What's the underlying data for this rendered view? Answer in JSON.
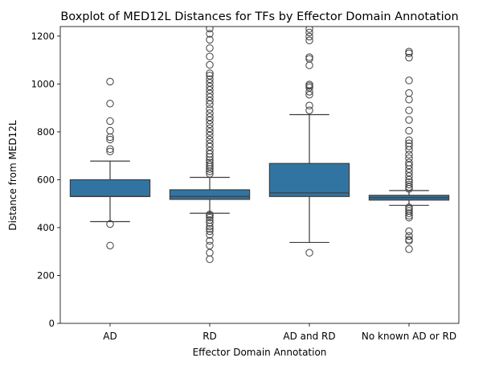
{
  "chart_data": {
    "type": "boxplot",
    "title": "Boxplot of MED12L Distances for TFs by Effector Domain Annotation",
    "xlabel": "Effector Domain Annotation",
    "ylabel": "Distance from MED12L",
    "ylim": [
      0,
      1240
    ],
    "yticks": [
      0,
      200,
      400,
      600,
      800,
      1000,
      1200
    ],
    "box_color": "#3274a1",
    "line_color": "#3d3d3d",
    "categories": [
      "AD",
      "RD",
      "AD and RD",
      "No known AD or RD"
    ],
    "boxes": [
      {
        "category": "AD",
        "q1": 530,
        "median": 530,
        "q3": 600,
        "whisker_low": 425,
        "whisker_high": 678,
        "outliers": [
          1010,
          918,
          845,
          805,
          778,
          768,
          728,
          718,
          415,
          325
        ]
      },
      {
        "category": "RD",
        "q1": 518,
        "median": 530,
        "q3": 558,
        "whisker_low": 460,
        "whisker_high": 610,
        "outliers": [
          1232,
          1210,
          1185,
          1150,
          1115,
          1080,
          1045,
          1035,
          1020,
          1005,
          990,
          975,
          960,
          945,
          930,
          915,
          895,
          878,
          862,
          848,
          832,
          815,
          800,
          785,
          768,
          752,
          738,
          722,
          708,
          695,
          682,
          672,
          663,
          655,
          645,
          635,
          625,
          455,
          450,
          442,
          432,
          420,
          405,
          395,
          385,
          370,
          345,
          325,
          295,
          268
        ]
      },
      {
        "category": "AD and RD",
        "q1": 530,
        "median": 545,
        "q3": 668,
        "whisker_low": 338,
        "whisker_high": 872,
        "outliers": [
          1230,
          1215,
          1198,
          1182,
          1112,
          1105,
          1078,
          998,
          992,
          985,
          968,
          955,
          910,
          890,
          295
        ]
      },
      {
        "category": "No known AD or RD",
        "q1": 515,
        "median": 525,
        "q3": 535,
        "whisker_low": 493,
        "whisker_high": 555,
        "outliers": [
          1135,
          1128,
          1110,
          1015,
          962,
          935,
          890,
          850,
          805,
          765,
          752,
          740,
          725,
          705,
          690,
          672,
          660,
          645,
          630,
          615,
          600,
          590,
          580,
          570,
          562,
          485,
          478,
          470,
          460,
          450,
          442,
          385,
          365,
          350,
          345,
          310
        ]
      }
    ]
  }
}
